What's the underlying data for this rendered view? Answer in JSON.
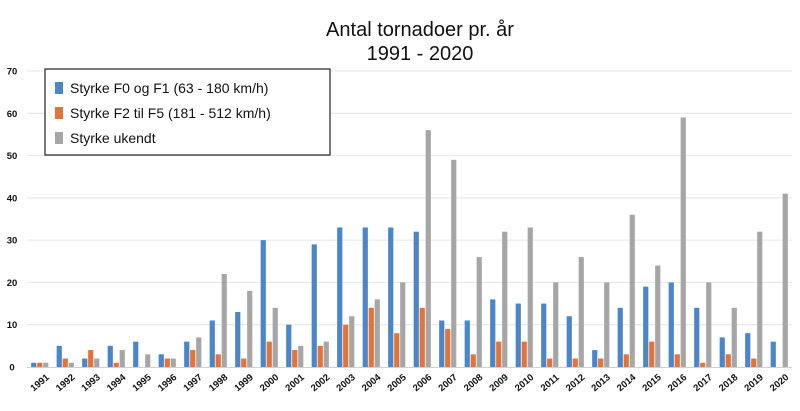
{
  "chart_data": {
    "type": "bar",
    "title": "Antal tornadoer pr. år",
    "subtitle": "1991 - 2020",
    "xlabel": "",
    "ylabel": "",
    "ylim": [
      0,
      70
    ],
    "yticks": [
      0,
      10,
      20,
      30,
      40,
      50,
      60,
      70
    ],
    "legend_position": "top-left",
    "categories": [
      "1991",
      "1992",
      "1993",
      "1994",
      "1995",
      "1996",
      "1997",
      "1998",
      "1999",
      "2000",
      "2001",
      "2002",
      "2003",
      "2004",
      "2005",
      "2006",
      "2007",
      "2008",
      "2009",
      "2010",
      "2011",
      "2012",
      "2013",
      "2014",
      "2015",
      "2016",
      "2017",
      "2018",
      "2019",
      "2020"
    ],
    "series": [
      {
        "name": "Styrke F0 og F1 (63 - 180 km/h)",
        "color": "#4a86c8",
        "values": [
          1,
          5,
          2,
          5,
          6,
          3,
          6,
          11,
          13,
          30,
          10,
          29,
          33,
          33,
          33,
          32,
          11,
          11,
          16,
          15,
          15,
          12,
          4,
          14,
          19,
          20,
          14,
          7,
          8,
          6
        ]
      },
      {
        "name": "Styrke F2 til F5 (181 - 512 km/h)",
        "color": "#e2733a",
        "values": [
          1,
          2,
          4,
          1,
          0,
          2,
          4,
          3,
          2,
          6,
          4,
          5,
          10,
          14,
          8,
          14,
          9,
          3,
          6,
          6,
          2,
          2,
          2,
          3,
          6,
          3,
          1,
          3,
          2,
          0
        ]
      },
      {
        "name": "Styrke ukendt",
        "color": "#a6a6a6",
        "values": [
          1,
          1,
          2,
          4,
          3,
          2,
          7,
          22,
          18,
          14,
          5,
          6,
          12,
          16,
          20,
          56,
          49,
          26,
          32,
          33,
          20,
          26,
          20,
          36,
          24,
          59,
          20,
          14,
          32,
          41
        ]
      }
    ]
  }
}
